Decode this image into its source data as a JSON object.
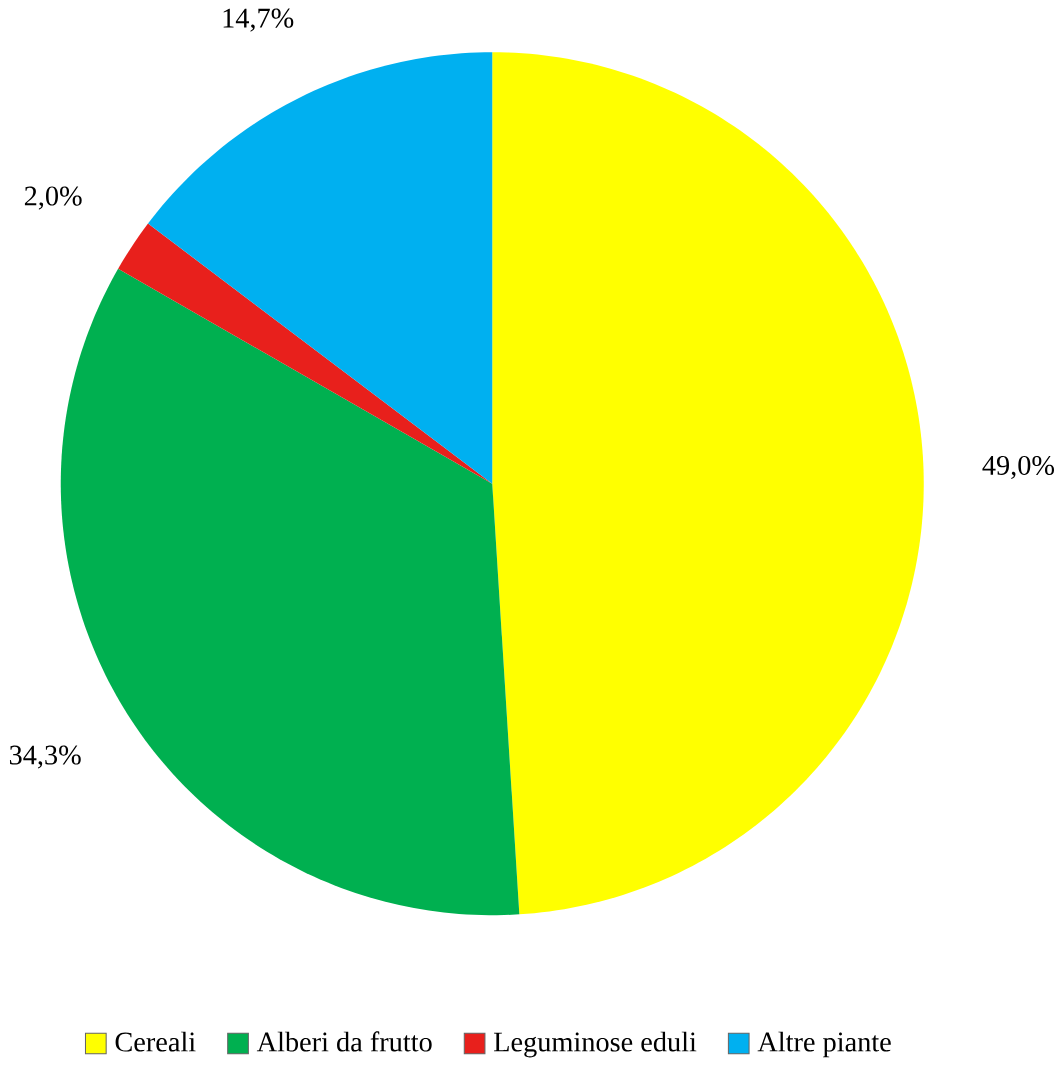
{
  "chart_data": {
    "type": "pie",
    "categories": [
      "Cereali",
      "Alberi da frutto",
      "Leguminose eduli",
      "Altre piante"
    ],
    "values": [
      49.0,
      34.3,
      2.0,
      14.7
    ],
    "value_labels": [
      "49,0%",
      "34,3%",
      "2,0%",
      "14,7%"
    ],
    "colors": [
      "#ffff00",
      "#00b050",
      "#e8201c",
      "#00b0f0"
    ],
    "legend": "bottom"
  }
}
